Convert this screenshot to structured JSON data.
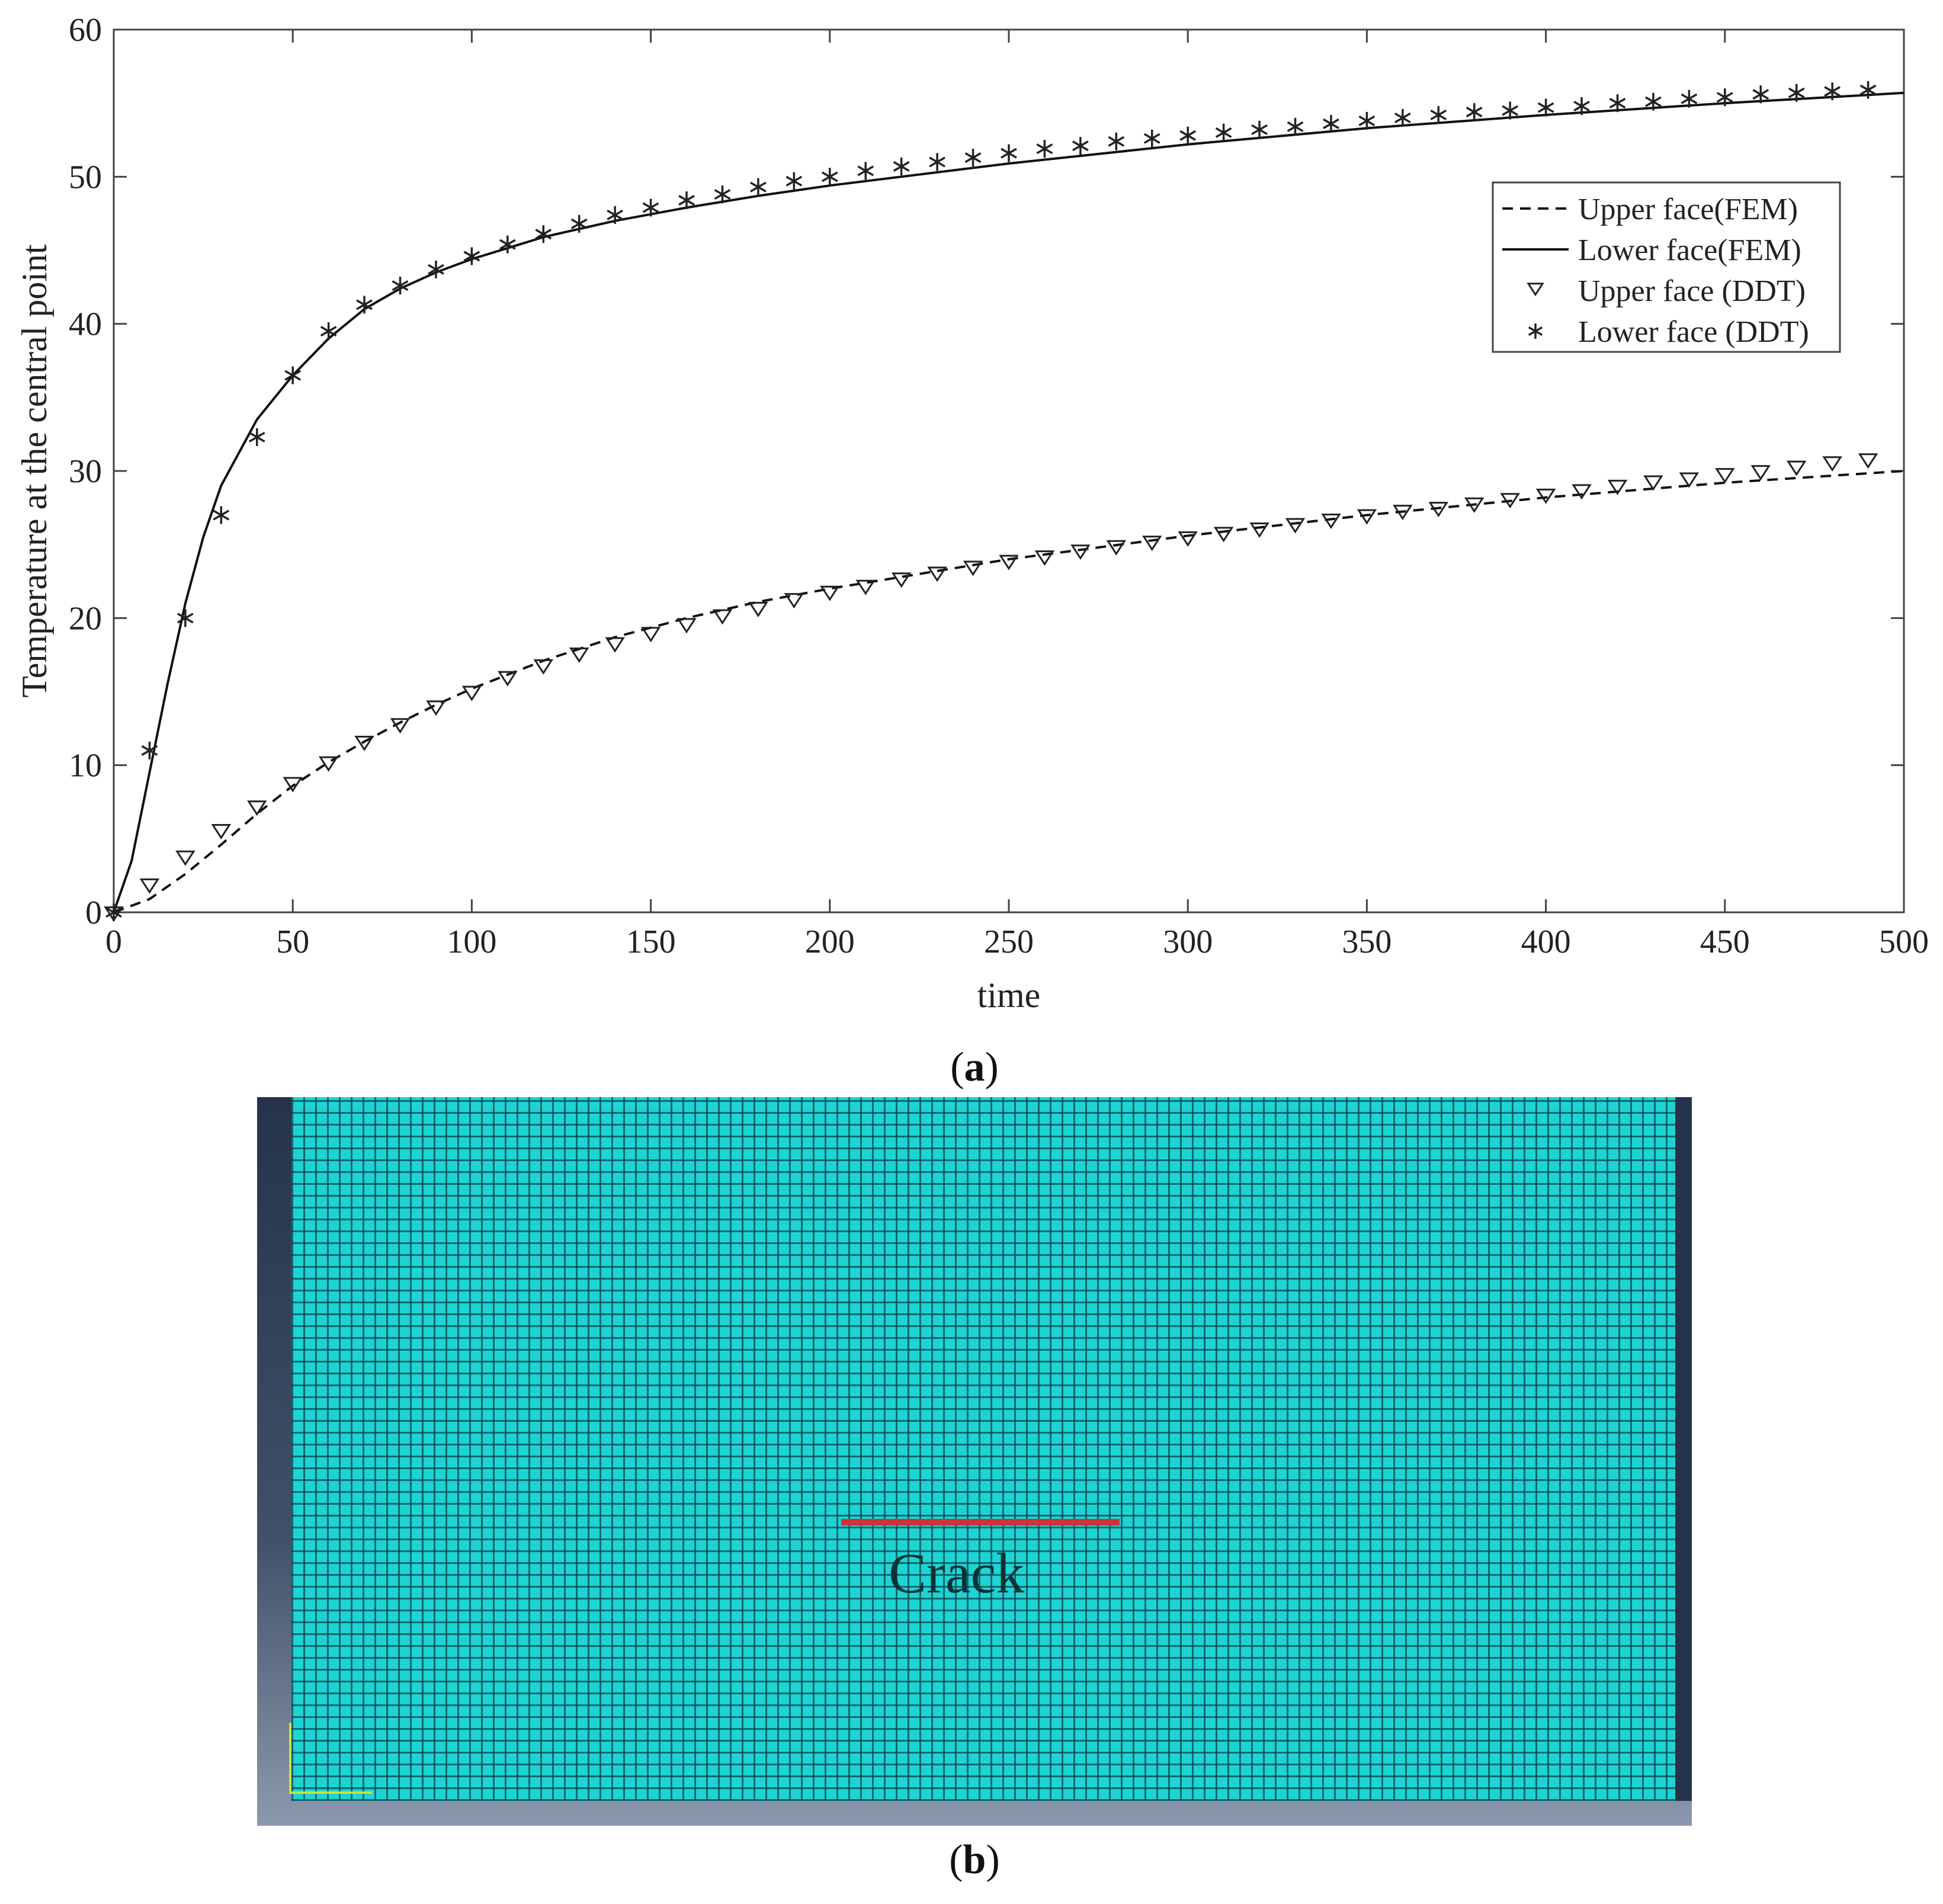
{
  "chart_data": {
    "type": "line",
    "title": "",
    "xlabel": "time",
    "ylabel": "Temperature at the central point",
    "xlim": [
      0,
      500
    ],
    "ylim": [
      0,
      60
    ],
    "xticks": [
      0,
      50,
      100,
      150,
      200,
      250,
      300,
      350,
      400,
      450,
      500
    ],
    "yticks": [
      0,
      10,
      20,
      30,
      40,
      50,
      60
    ],
    "grid": false,
    "legend_position": "top-right",
    "series": [
      {
        "name": "Upper face(FEM)",
        "style": "dashed",
        "x": [
          0,
          10,
          20,
          30,
          40,
          50,
          60,
          70,
          80,
          90,
          100,
          120,
          140,
          160,
          180,
          200,
          250,
          300,
          350,
          400,
          450,
          500
        ],
        "y": [
          0,
          0.9,
          2.6,
          4.6,
          6.7,
          8.6,
          10.2,
          11.6,
          12.9,
          14.1,
          15.2,
          17.1,
          18.7,
          20.0,
          21.1,
          22.0,
          24.0,
          25.6,
          27.0,
          28.2,
          29.2,
          30.0
        ]
      },
      {
        "name": "Lower face(FEM)",
        "style": "solid",
        "x": [
          0,
          5,
          10,
          15,
          20,
          25,
          30,
          40,
          50,
          60,
          70,
          80,
          90,
          100,
          120,
          140,
          160,
          180,
          200,
          250,
          300,
          350,
          400,
          450,
          500
        ],
        "y": [
          0,
          3.5,
          9.5,
          15.5,
          21.0,
          25.5,
          29.0,
          33.5,
          36.5,
          39.0,
          41.0,
          42.4,
          43.5,
          44.4,
          45.9,
          47.0,
          47.9,
          48.7,
          49.4,
          50.9,
          52.2,
          53.3,
          54.2,
          55.0,
          55.7
        ]
      },
      {
        "name": "Upper face (DDT)",
        "marker": "triangle-down",
        "x": [
          0,
          10,
          20,
          30,
          40,
          50,
          60,
          70,
          80,
          90,
          100,
          110,
          120,
          130,
          140,
          150,
          160,
          170,
          180,
          190,
          200,
          210,
          220,
          230,
          240,
          250,
          260,
          270,
          280,
          290,
          300,
          310,
          320,
          330,
          340,
          350,
          360,
          370,
          380,
          390,
          400,
          410,
          420,
          430,
          440,
          450,
          460,
          470,
          480,
          490
        ],
        "y": [
          0,
          1.9,
          3.8,
          5.6,
          7.2,
          8.8,
          10.2,
          11.6,
          12.8,
          14.0,
          15.0,
          16.0,
          16.8,
          17.6,
          18.3,
          19.0,
          19.6,
          20.2,
          20.7,
          21.3,
          21.8,
          22.2,
          22.7,
          23.1,
          23.5,
          23.9,
          24.2,
          24.6,
          24.9,
          25.2,
          25.5,
          25.8,
          26.1,
          26.4,
          26.7,
          27.0,
          27.3,
          27.5,
          27.8,
          28.1,
          28.4,
          28.7,
          29.0,
          29.3,
          29.5,
          29.8,
          30.0,
          30.3,
          30.6,
          30.8
        ]
      },
      {
        "name": "Lower face (DDT)",
        "marker": "asterisk",
        "x": [
          0,
          10,
          20,
          30,
          40,
          50,
          60,
          70,
          80,
          90,
          100,
          110,
          120,
          130,
          140,
          150,
          160,
          170,
          180,
          190,
          200,
          210,
          220,
          230,
          240,
          250,
          260,
          270,
          280,
          290,
          300,
          310,
          320,
          330,
          340,
          350,
          360,
          370,
          380,
          390,
          400,
          410,
          420,
          430,
          440,
          450,
          460,
          470,
          480,
          490
        ],
        "y": [
          0,
          11.0,
          20.0,
          27.0,
          32.3,
          36.5,
          39.5,
          41.3,
          42.6,
          43.7,
          44.6,
          45.4,
          46.1,
          46.8,
          47.4,
          47.9,
          48.4,
          48.8,
          49.3,
          49.7,
          50.0,
          50.4,
          50.7,
          51.0,
          51.3,
          51.6,
          51.9,
          52.1,
          52.4,
          52.6,
          52.8,
          53.0,
          53.2,
          53.4,
          53.6,
          53.8,
          54.0,
          54.2,
          54.4,
          54.5,
          54.7,
          54.8,
          55.0,
          55.1,
          55.3,
          55.4,
          55.6,
          55.7,
          55.8,
          55.9
        ]
      }
    ]
  },
  "panel_a_label": {
    "open": "(",
    "letter": "a",
    "close": ")"
  },
  "panel_b_label": {
    "open": "(",
    "letter": "b",
    "close": ")"
  },
  "mesh": {
    "crack_label": "Crack",
    "crack_color": "#d0303a",
    "mesh_color": "#1ed3d3"
  }
}
